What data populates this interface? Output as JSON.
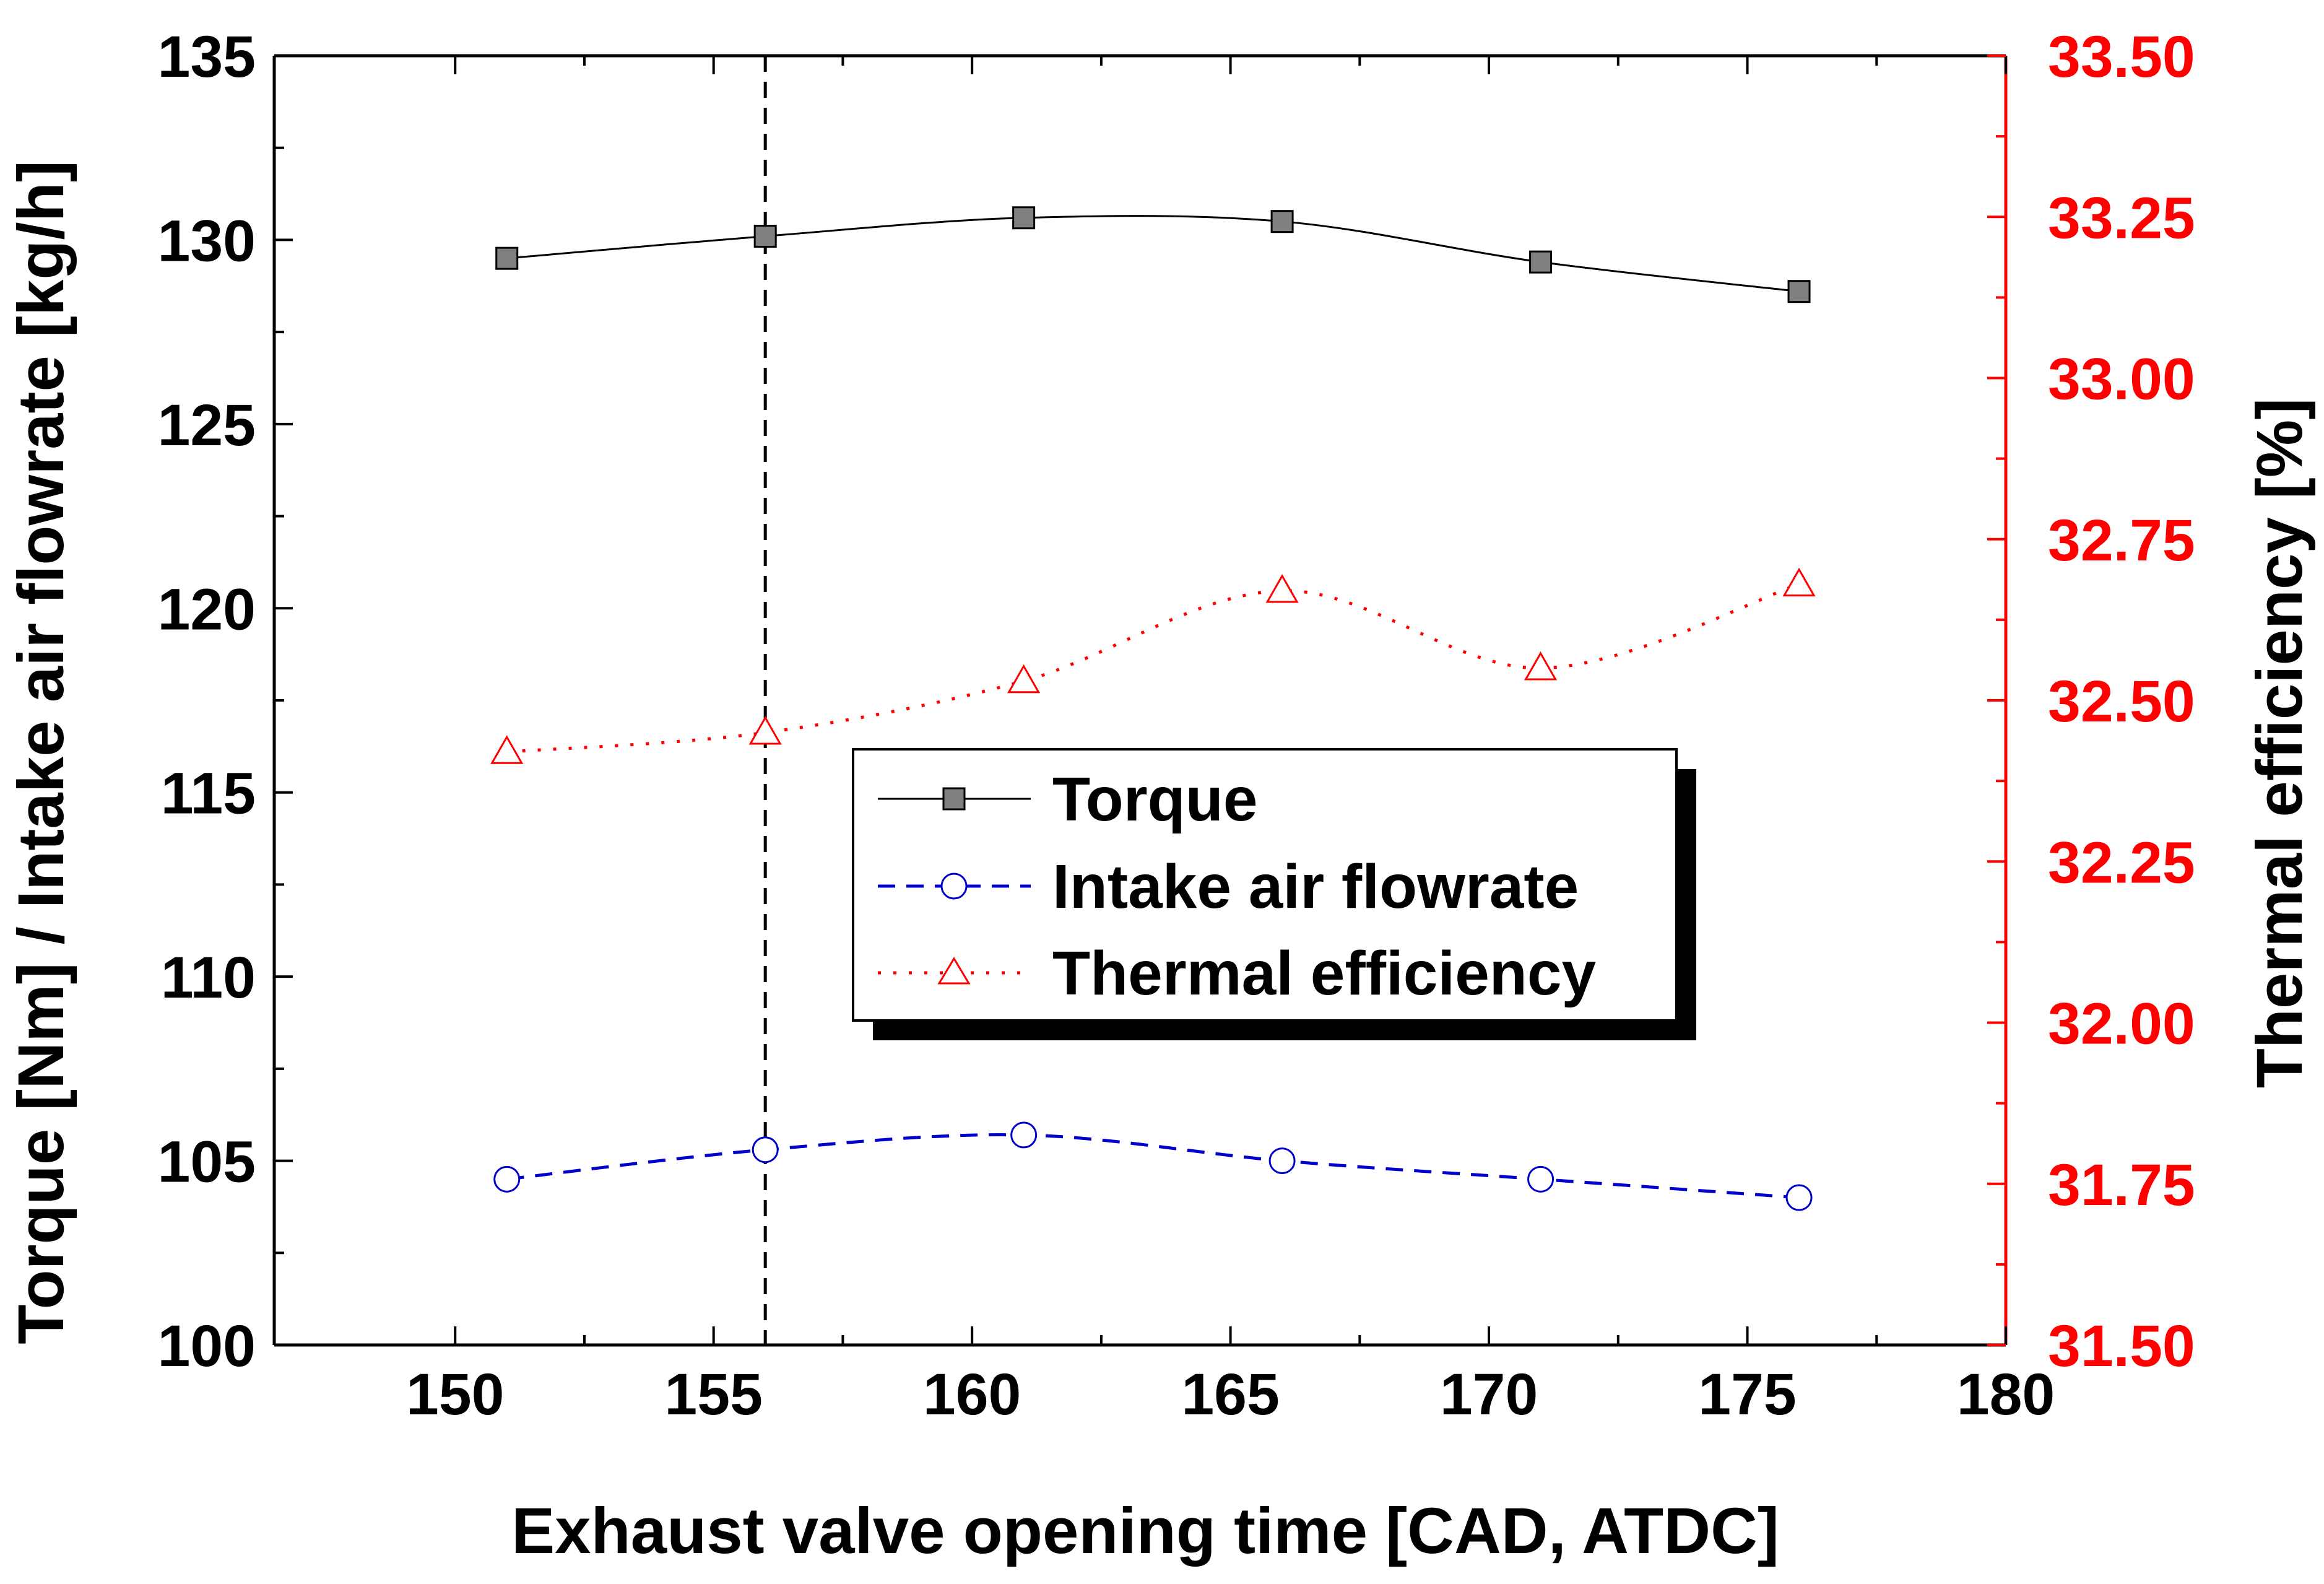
{
  "chart_data": {
    "type": "line",
    "xlabel": "Exhaust valve opening time [CAD, ATDC]",
    "ylabel_left": "Torque [Nm] / Intake air flowrate [kg/h]",
    "ylabel_right": "Thermal efficiency [%]",
    "xlim": [
      146.5,
      180
    ],
    "ylim_left": [
      100,
      135
    ],
    "ylim_right": [
      31.5,
      33.5
    ],
    "x_ticks": [
      "150",
      "155",
      "160",
      "165",
      "170",
      "175",
      "180"
    ],
    "x_tick_values": [
      150,
      155,
      160,
      165,
      170,
      175,
      180
    ],
    "y_left_ticks": [
      "100",
      "105",
      "110",
      "115",
      "120",
      "125",
      "130",
      "135"
    ],
    "y_left_tick_values": [
      100,
      105,
      110,
      115,
      120,
      125,
      130,
      135
    ],
    "y_right_ticks": [
      "31.50",
      "31.75",
      "32.00",
      "32.25",
      "32.50",
      "32.75",
      "33.00",
      "33.25",
      "33.50"
    ],
    "y_right_tick_values": [
      31.5,
      31.75,
      32.0,
      32.25,
      32.5,
      32.75,
      33.0,
      33.25,
      33.5
    ],
    "reference_line_x": 156,
    "x": [
      151,
      156,
      161,
      166,
      171,
      176
    ],
    "series": [
      {
        "name": "Torque",
        "axis": "left",
        "color": "#000000",
        "marker_fill": "#808080",
        "values": [
          129.5,
          130.1,
          130.6,
          130.5,
          129.4,
          128.6
        ]
      },
      {
        "name": "Intake air flowrate",
        "axis": "left",
        "color": "#0000cc",
        "values": [
          104.5,
          105.3,
          105.7,
          105.0,
          104.5,
          104.0
        ]
      },
      {
        "name": "Thermal efficiency",
        "axis": "right",
        "color": "#ff0000",
        "values": [
          32.42,
          32.45,
          32.53,
          32.67,
          32.55,
          32.68
        ]
      }
    ],
    "legend_position": "center",
    "right_axis_color": "#ff0000"
  }
}
